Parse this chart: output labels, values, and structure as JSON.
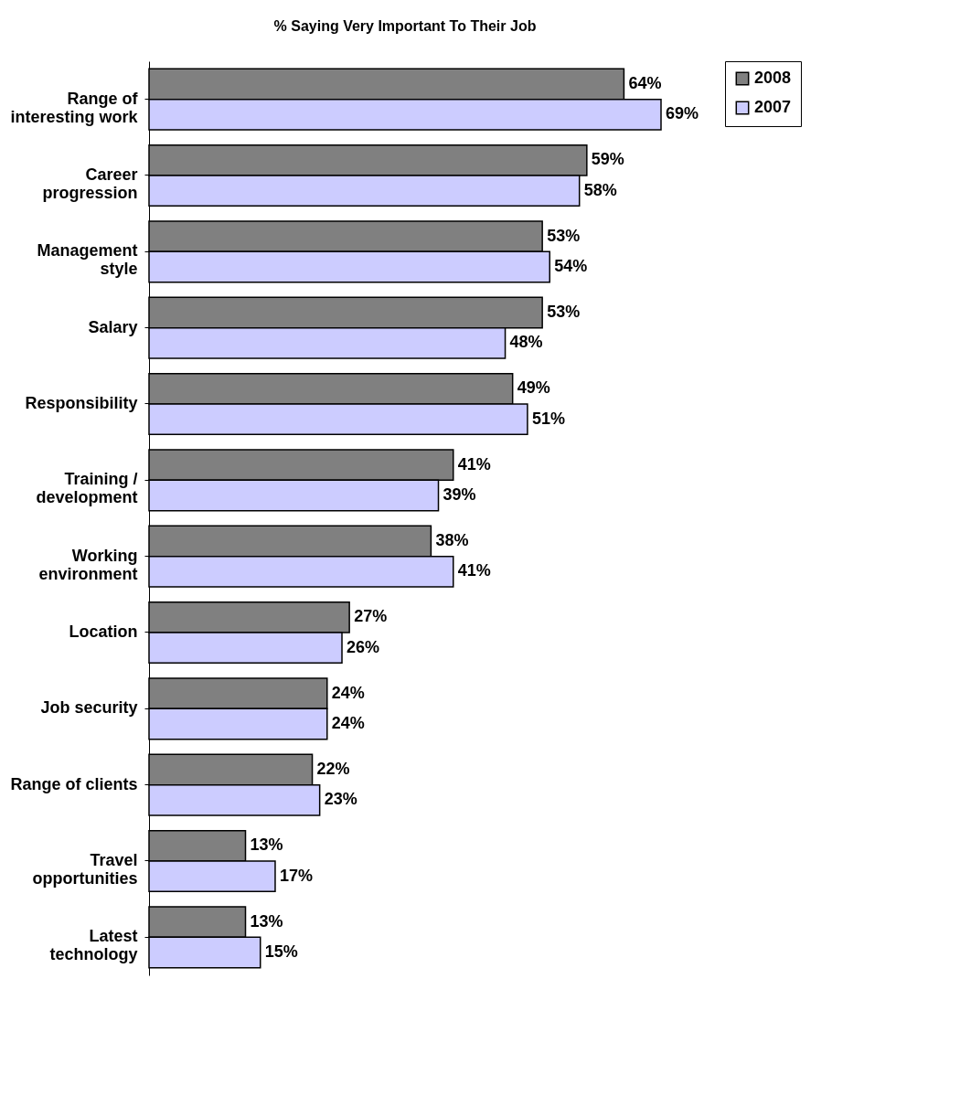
{
  "chart_data": {
    "type": "bar",
    "orientation": "horizontal",
    "title": "% Saying Very Important To Their Job",
    "categories": [
      "Range of interesting work",
      "Career progression",
      "Management style",
      "Salary",
      "Responsibility",
      "Training / development",
      "Working environment",
      "Location",
      "Job security",
      "Range of clients",
      "Travel opportunities",
      "Latest technology"
    ],
    "series": [
      {
        "name": "2008",
        "color": "#808080",
        "values": [
          64,
          59,
          53,
          53,
          49,
          41,
          38,
          27,
          24,
          22,
          13,
          13
        ],
        "value_labels": [
          "64%",
          "59%",
          "53%",
          "53%",
          "49%",
          "41%",
          "38%",
          "27%",
          "24%",
          "22%",
          "13%",
          "13%"
        ]
      },
      {
        "name": "2007",
        "color": "#ccccff",
        "values": [
          69,
          58,
          54,
          48,
          51,
          39,
          41,
          26,
          24,
          23,
          17,
          15
        ],
        "value_labels": [
          "69%",
          "58%",
          "54%",
          "48%",
          "51%",
          "39%",
          "41%",
          "26%",
          "24%",
          "23%",
          "17%",
          "15%"
        ]
      }
    ],
    "tick_labels": "y",
    "legend": "right"
  }
}
